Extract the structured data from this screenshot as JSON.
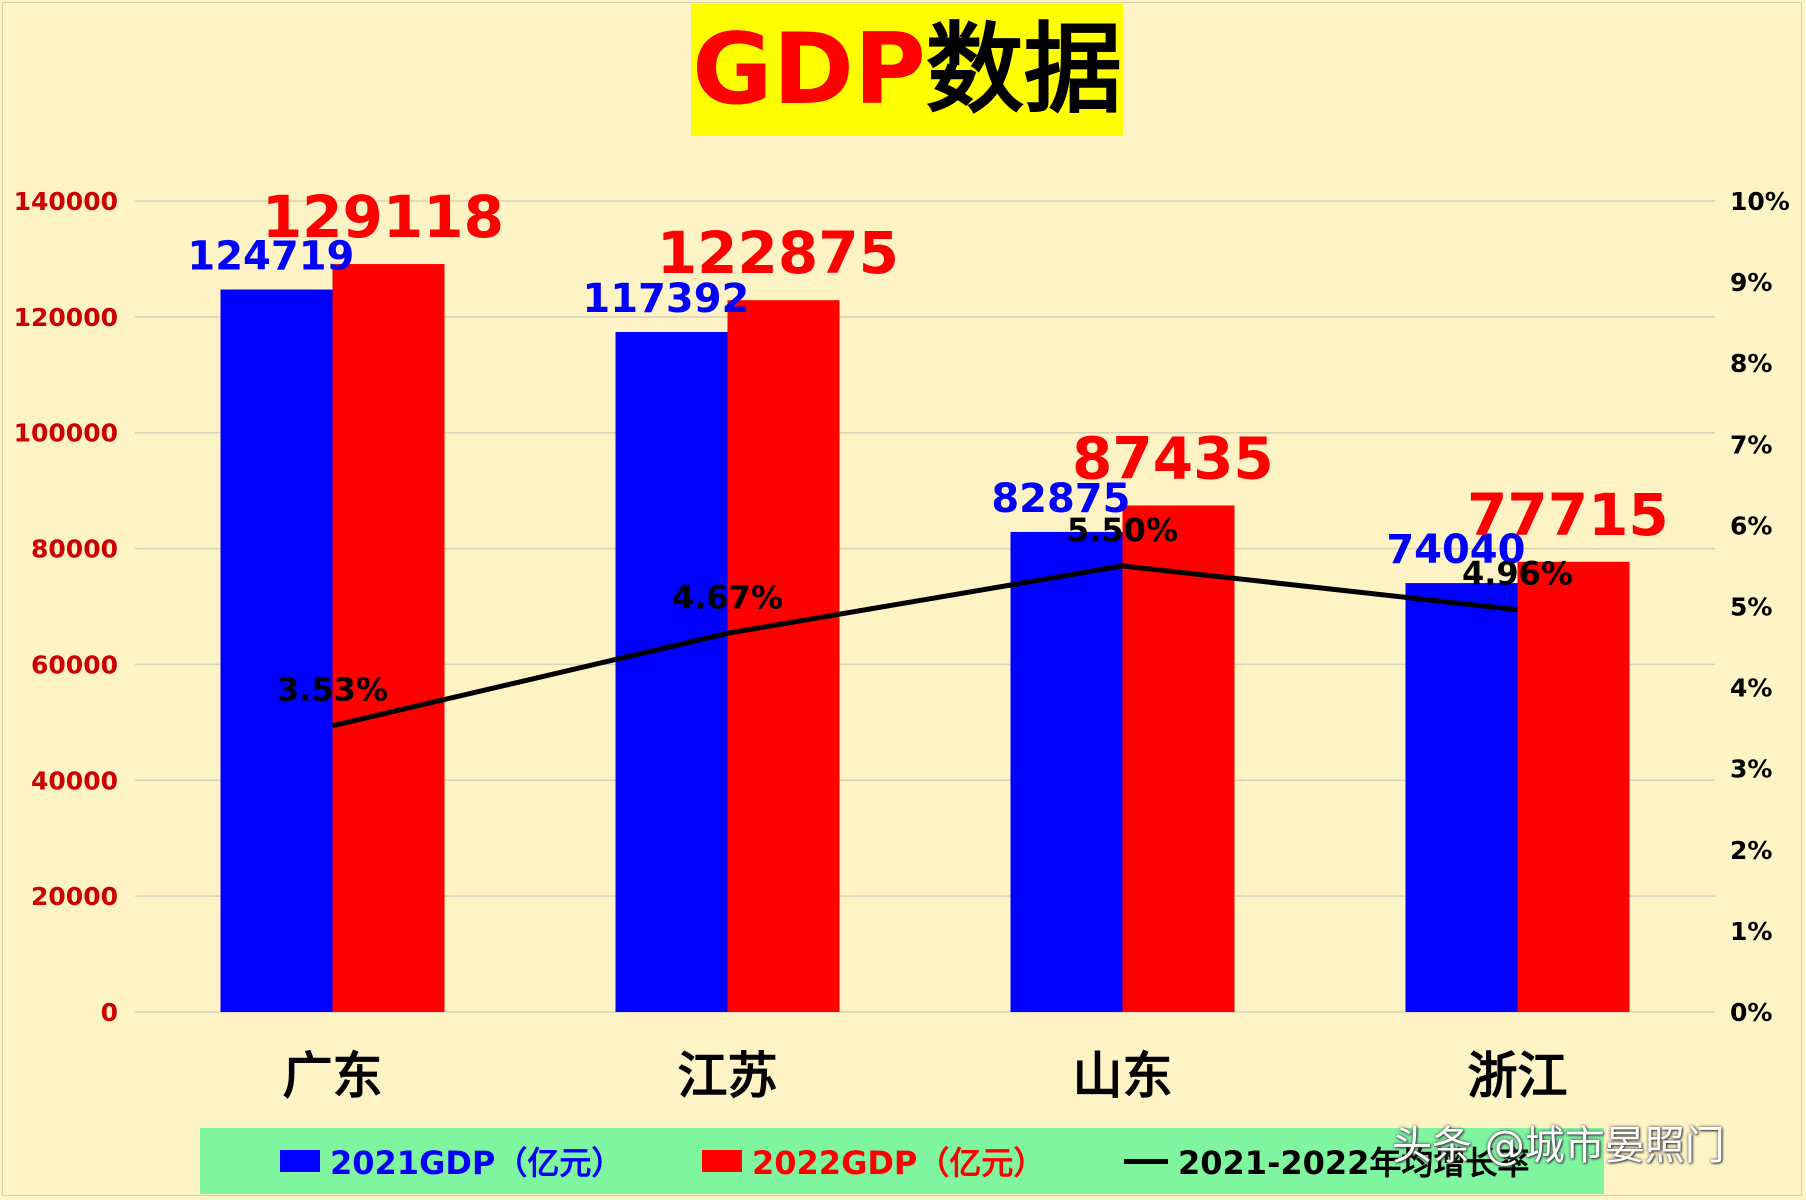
{
  "title": {
    "gdp": "GDP",
    "rest": "数据"
  },
  "watermark": "头条 @城市晏照门",
  "colors": {
    "gdp2021": "#0000ff",
    "gdp2022": "#ff0000",
    "growth": "#000000",
    "left_axis": "#cc0000",
    "title_bg": "#ffff00",
    "legend_bg": "#7ff5a0",
    "background": "#fdf3c4"
  },
  "chart_data": {
    "type": "bar",
    "categories": [
      "广东",
      "江苏",
      "山东",
      "浙江"
    ],
    "series": [
      {
        "name": "2021GDP（亿元）",
        "values": [
          124719,
          117392,
          82875,
          74040
        ]
      },
      {
        "name": "2022GDP（亿元）",
        "values": [
          129118,
          122875,
          87435,
          77715
        ]
      }
    ],
    "line_series": {
      "name": "2021-2022年均增长率",
      "values": [
        3.53,
        4.67,
        5.5,
        4.96
      ],
      "labels": [
        "3.53%",
        "4.67%",
        "5.50%",
        "4.96%"
      ]
    },
    "y_left": {
      "min": 0,
      "max": 140000,
      "ticks": [
        "0",
        "20000",
        "40000",
        "60000",
        "80000",
        "100000",
        "120000",
        "140000"
      ]
    },
    "y_right": {
      "min": 0,
      "max": 10,
      "ticks": [
        "0%",
        "1%",
        "2%",
        "3%",
        "4%",
        "5%",
        "6%",
        "7%",
        "8%",
        "9%",
        "10%"
      ]
    },
    "grid": true,
    "legend_position": "bottom"
  }
}
